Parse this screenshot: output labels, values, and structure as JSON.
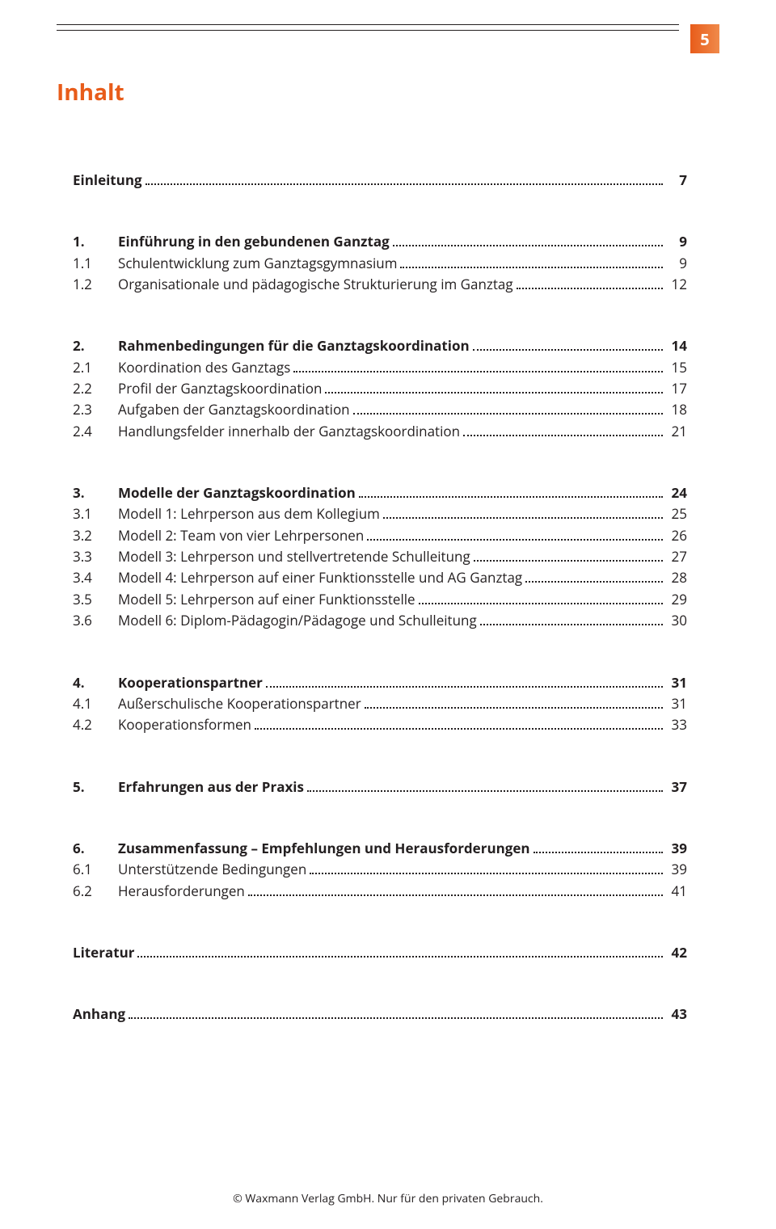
{
  "page_number": "5",
  "title": "Inhalt",
  "entries": [
    {
      "type": "plain-bold",
      "num": "",
      "label": "Einleitung",
      "page": "7",
      "group_end": true
    },
    {
      "type": "bold",
      "num": "1.",
      "label": "Einführung in den gebundenen Ganztag",
      "page": "9"
    },
    {
      "type": "sub",
      "num": "1.1",
      "label": "Schulentwicklung zum Ganztagsgymnasium",
      "page": "9"
    },
    {
      "type": "sub",
      "num": "1.2",
      "label": "Organisationale und pädagogische Strukturierung im Ganztag",
      "page": "12",
      "group_end": true
    },
    {
      "type": "bold",
      "num": "2.",
      "label": "Rahmenbedingungen für die Ganztagskoordination",
      "page": "14"
    },
    {
      "type": "sub",
      "num": "2.1",
      "label": "Koordination des Ganztags",
      "page": "15"
    },
    {
      "type": "sub",
      "num": "2.2",
      "label": "Profil der Ganztagskoordination",
      "page": "17"
    },
    {
      "type": "sub",
      "num": "2.3",
      "label": "Aufgaben der Ganztagskoordination",
      "page": "18"
    },
    {
      "type": "sub",
      "num": "2.4",
      "label": "Handlungsfelder innerhalb der Ganztagskoordination",
      "page": "21",
      "group_end": true
    },
    {
      "type": "bold",
      "num": "3.",
      "label": "Modelle der Ganztagskoordination",
      "page": "24"
    },
    {
      "type": "sub",
      "num": "3.1",
      "label": "Modell 1: Lehrperson aus dem Kollegium",
      "page": "25"
    },
    {
      "type": "sub",
      "num": "3.2",
      "label": "Modell 2: Team von vier Lehrpersonen",
      "page": "26"
    },
    {
      "type": "sub",
      "num": "3.3",
      "label": "Modell 3: Lehrperson und stellvertretende Schulleitung",
      "page": "27"
    },
    {
      "type": "sub",
      "num": "3.4",
      "label": "Modell 4: Lehrperson auf einer Funktionsstelle und AG Ganztag",
      "page": "28"
    },
    {
      "type": "sub",
      "num": "3.5",
      "label": "Modell 5: Lehrperson auf einer Funktionsstelle",
      "page": "29"
    },
    {
      "type": "sub",
      "num": "3.6",
      "label": "Modell 6: Diplom-Pädagogin/Pädagoge und Schulleitung",
      "page": "30",
      "group_end": true
    },
    {
      "type": "bold",
      "num": "4.",
      "label": "Kooperationspartner",
      "page": "31"
    },
    {
      "type": "sub",
      "num": "4.1",
      "label": "Außerschulische Kooperationspartner",
      "page": "31"
    },
    {
      "type": "sub",
      "num": "4.2",
      "label": "Kooperationsformen",
      "page": "33",
      "group_end": true
    },
    {
      "type": "bold",
      "num": "5.",
      "label": "Erfahrungen aus der Praxis",
      "page": "37",
      "group_end": true
    },
    {
      "type": "bold",
      "num": "6.",
      "label": "Zusammenfassung – Empfehlungen und Herausforderungen",
      "page": "39"
    },
    {
      "type": "sub",
      "num": "6.1",
      "label": "Unterstützende Bedingungen",
      "page": "39"
    },
    {
      "type": "sub",
      "num": "6.2",
      "label": "Herausforderungen",
      "page": "41",
      "group_end": true
    },
    {
      "type": "plain-bold",
      "num": "",
      "label": "Literatur",
      "page": "42",
      "group_end": true
    },
    {
      "type": "plain-bold",
      "num": "",
      "label": "Anhang",
      "page": "43"
    }
  ],
  "footer": "© Waxmann Verlag GmbH. Nur für den privaten Gebrauch.",
  "colors": {
    "accent": "#e85c1a",
    "accent_light": "#f08a4b",
    "text": "#231f20",
    "background": "#ffffff"
  },
  "fontsizes": {
    "title": 28,
    "body": 17,
    "footer": 14,
    "page_num": 20
  }
}
